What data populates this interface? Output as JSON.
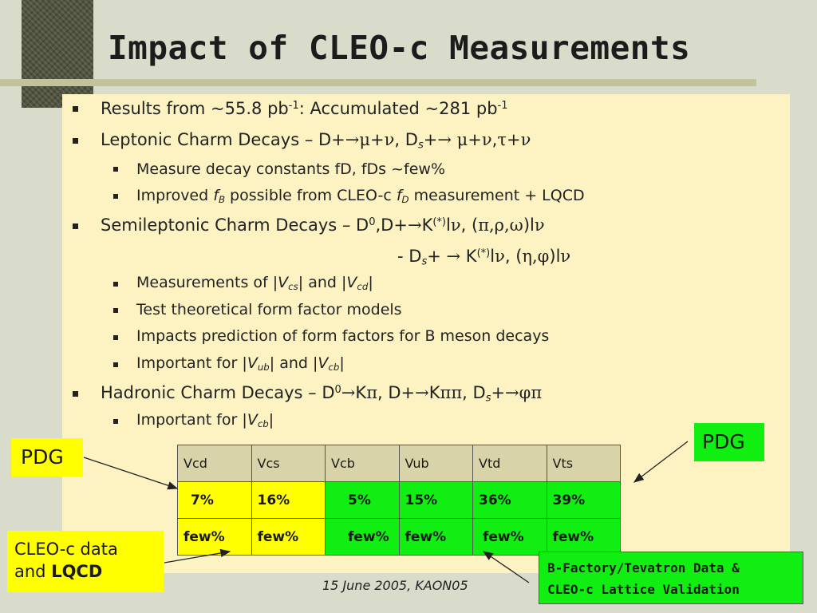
{
  "title": "Impact of CLEO-c Measurements",
  "bullets": {
    "b1": {
      "text_a": "Results from ~55.8 pb",
      "sup_a": "-1",
      "text_b": ": Accumulated ~281 pb",
      "sup_b": "-1"
    },
    "b2": {
      "text_a": "Leptonic Charm Decays – D+",
      "arrow": "→",
      "greek_a": "μ",
      "plus_a": "+",
      "greek_b": "ν",
      "text_b": ", D",
      "sub_a": "s",
      "plus_b": "+",
      "arrow_b": "→",
      "greek_c": " μ",
      "plus_c": "+",
      "greek_d": "ν",
      "comma": ",",
      "greek_e": "τ",
      "plus_d": "+",
      "greek_f": "ν"
    },
    "b2a": "Measure decay constants fD, fDs ~few%",
    "b2b": {
      "text_a": "Improved ",
      "f": "f",
      "sub_b": "B",
      "text_b": " possible from CLEO-c ",
      "f2": "f",
      "sub_d": "D",
      "text_c": " measurement + LQCD"
    },
    "b3": {
      "text_a": "Semileptonic Charm Decays – D",
      "sup_a": "0",
      "text_b": ",D+",
      "arrow": "→",
      "text_c": "K",
      "sup_b": "(*)",
      "text_d": "l",
      "greek_a": "ν",
      "text_e": ", (",
      "greek_b": "π,ρ,ω",
      "text_f": ")l",
      "greek_c": "ν"
    },
    "b3_cont": {
      "text_a": "- D",
      "sub_a": "s",
      "text_b": "+ ",
      "arrow": "→",
      "text_c": " K",
      "sup_b": "(*)",
      "text_d": "l",
      "greek_a": "ν",
      "text_e": ", (",
      "greek_b": "η,φ",
      "text_f": ")l",
      "greek_c": "ν"
    },
    "b3a": {
      "text_a": "Measurements of |",
      "v1": "V",
      "sub_1": "cs",
      "text_b": "| and |",
      "v2": "V",
      "sub_2": "cd",
      "text_c": "|"
    },
    "b3b": "Test theoretical form factor models",
    "b3c": "Impacts prediction of form factors for B meson decays",
    "b3d": {
      "text_a": "Important for |",
      "v1": "V",
      "sub_1": "ub",
      "text_b": "| and |",
      "v2": "V",
      "sub_2": "cb",
      "text_c": "|"
    },
    "b4": {
      "text_a": "Hadronic Charm Decays – D",
      "sup_a": "0",
      "arrow": "→",
      "text_b": "K",
      "greek_a": "π",
      "text_c": ", D+",
      "arrow_b": "→",
      "text_d": "K",
      "greek_b": "ππ",
      "text_e": ", D",
      "sub_a": "s",
      "text_f": "+",
      "arrow_c": "→",
      "greek_c": "φπ"
    },
    "b4a": {
      "text_a": "Important for |",
      "v1": "V",
      "sub_1": "cb",
      "text_b": "|"
    }
  },
  "table": {
    "headers": [
      "Vcd",
      "Vcs",
      "Vcb",
      "Vub",
      "Vtd",
      "Vts"
    ],
    "row1": [
      "7%",
      "16%",
      "5%",
      "15%",
      "36%",
      "39%"
    ],
    "row2": [
      "few%",
      "few%",
      "few%",
      "few%",
      "few%",
      "few%"
    ]
  },
  "callouts": {
    "pdg_left": "PDG",
    "pdg_right": "PDG",
    "cleo_line1": "CLEO-c data",
    "cleo_line2_a": "and ",
    "cleo_line2_b": "LQCD",
    "bfac_line1": "B-Factory/Tevatron Data &",
    "bfac_line2": "CLEO-c Lattice Validation"
  },
  "footer": "15 June 2005, KAON05",
  "colors": {
    "background": "#d9dccb",
    "content_box": "#fdf3c2",
    "yellow": "#ffff00",
    "green": "#11ee11",
    "header_cell": "#d8d3a8"
  }
}
